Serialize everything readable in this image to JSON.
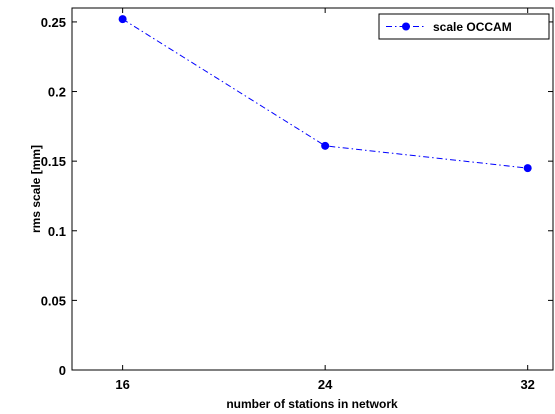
{
  "chart_data": {
    "type": "line",
    "title": "",
    "xlabel": "number of stations in network",
    "ylabel": "rms scale [mm]",
    "x": [
      16,
      24,
      32
    ],
    "x_ticks": [
      "16",
      "24",
      "32"
    ],
    "y_ticks": [
      "0",
      "0.05",
      "0.1",
      "0.15",
      "0.2",
      "0.25"
    ],
    "xlim": [
      14,
      33
    ],
    "ylim": [
      0,
      0.26
    ],
    "grid": false,
    "legend_position": "top-right",
    "series": [
      {
        "name": "scale OCCAM",
        "values": [
          0.252,
          0.161,
          0.145
        ],
        "color": "#0000ff",
        "line_style": "dash-dot",
        "marker": "circle"
      }
    ]
  }
}
